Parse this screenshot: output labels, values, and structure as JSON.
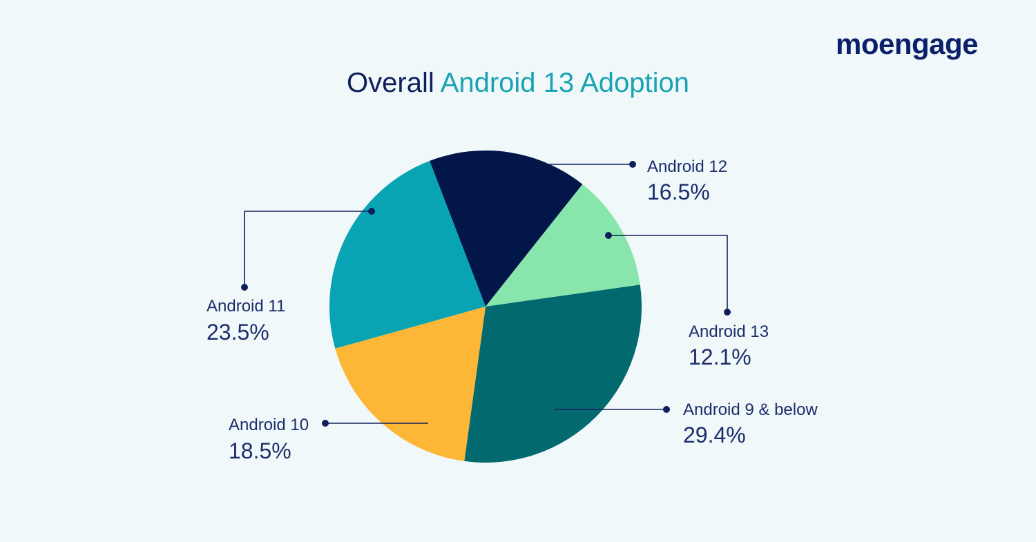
{
  "brand": {
    "logo_text": "moengage"
  },
  "header": {
    "title_prefix": "Overall",
    "title_highlight": "Android 13 Adoption"
  },
  "colors": {
    "background": "#f1f8fa",
    "navy": "#0f1f5c",
    "teal_title": "#1aa3b4"
  },
  "chart_data": {
    "type": "pie",
    "title": "Overall Android 13 Adoption",
    "slices": [
      {
        "label": "Android 12",
        "value": 16.5,
        "value_label": "16.5%",
        "color": "#02164a"
      },
      {
        "label": "Android 13",
        "value": 12.1,
        "value_label": "12.1%",
        "color": "#88e6ac"
      },
      {
        "label": "Android 9 & below",
        "value": 29.4,
        "value_label": "29.4%",
        "color": "#02696f"
      },
      {
        "label": "Android 10",
        "value": 18.5,
        "value_label": "18.5%",
        "color": "#fdb635"
      },
      {
        "label": "Android 11",
        "value": 23.5,
        "value_label": "23.5%",
        "color": "#09a4b4"
      }
    ]
  }
}
